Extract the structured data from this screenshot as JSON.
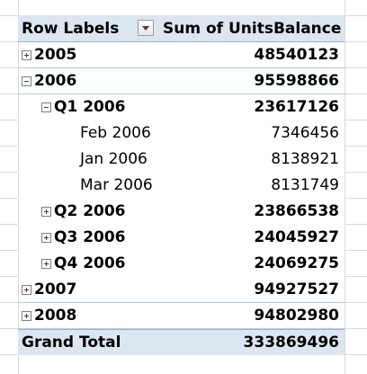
{
  "pivot": {
    "header": {
      "row_labels": "Row Labels",
      "sum_label": "Sum of UnitsBalance"
    },
    "rows": [
      {
        "label": "2005",
        "value": "48540123",
        "level": 0,
        "toggle": "plus",
        "bold": true
      },
      {
        "label": "2006",
        "value": "95598866",
        "level": 0,
        "toggle": "minus",
        "bold": true
      },
      {
        "label": "Q1 2006",
        "value": "23617126",
        "level": 1,
        "toggle": "minus",
        "bold": true
      },
      {
        "label": "Feb 2006",
        "value": "7346456",
        "level": 2,
        "toggle": "none",
        "bold": false
      },
      {
        "label": "Jan 2006",
        "value": "8138921",
        "level": 2,
        "toggle": "none",
        "bold": false
      },
      {
        "label": "Mar 2006",
        "value": "8131749",
        "level": 2,
        "toggle": "none",
        "bold": false
      },
      {
        "label": "Q2 2006",
        "value": "23866538",
        "level": 1,
        "toggle": "plus",
        "bold": true
      },
      {
        "label": "Q3 2006",
        "value": "24045927",
        "level": 1,
        "toggle": "plus",
        "bold": true
      },
      {
        "label": "Q4 2006",
        "value": "24069275",
        "level": 1,
        "toggle": "plus",
        "bold": true
      },
      {
        "label": "2007",
        "value": "94927527",
        "level": 0,
        "toggle": "plus",
        "bold": true
      },
      {
        "label": "2008",
        "value": "94802980",
        "level": 0,
        "toggle": "plus",
        "bold": true
      }
    ],
    "grand_total": {
      "label": "Grand Total",
      "value": "333869496"
    }
  },
  "colors": {
    "header_fill": "#dce6f1",
    "header_border": "#95b3d7",
    "gridline": "#d9d9d9"
  }
}
